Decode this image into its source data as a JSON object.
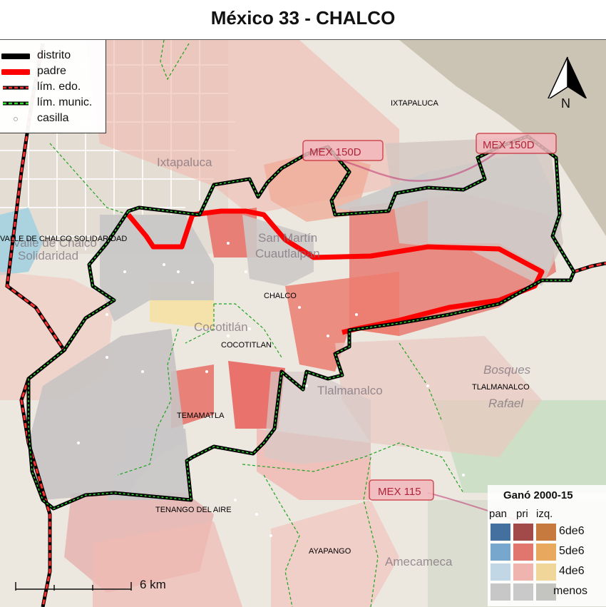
{
  "title": "México 33 - CHALCO",
  "legend": {
    "items": [
      {
        "label": "distrito"
      },
      {
        "label": "padre"
      },
      {
        "label": "lím. edo."
      },
      {
        "label": "lím. munic."
      },
      {
        "label": "casilla"
      }
    ]
  },
  "north_label": "N",
  "scale_label": "6 km",
  "municipality_labels": {
    "ixtapaluca": "IXTAPALUCA",
    "valle_chalco": "VALLE DE CHALCO SOLIDARIDAD",
    "chalco": "CHALCO",
    "cocotitlan": "COCOTITLAN",
    "tlalmanalco": "TLALMANALCO",
    "temamatla": "TEMAMATLA",
    "tenango": "TENANGO DEL AIRE",
    "ayapango": "AYAPANGO"
  },
  "basemap_labels": {
    "ixtapaluca_town": "Ixtapaluca",
    "valle_town_1": "Valle de Chalco",
    "valle_town_2": "Solidaridad",
    "san_martin_1": "San Martín",
    "san_martin_2": "Cuautlalpan",
    "cocotitlan_town": "Cocotitlán",
    "tlalmanalco_town": "Tlalmanalco",
    "bosques_1": "Bosques",
    "bosques_2": "Rafael",
    "amecameca_town": "Amecameca",
    "road_150d_a": "MEX 150D",
    "road_150d_b": "MEX 150D",
    "road_115": "MEX 115"
  },
  "winners_legend": {
    "title": "Ganó 2000-15",
    "columns": [
      "pan",
      "pri",
      "izq."
    ],
    "rows": [
      "6de6",
      "5de6",
      "4de6",
      "menos"
    ],
    "colors": {
      "pan": [
        "#43709f",
        "#77a7cc",
        "#c2d7e6",
        "#c7c7c7"
      ],
      "pri": [
        "#a24a4a",
        "#e0766e",
        "#efb4ad",
        "#c9c9c9"
      ],
      "izq": [
        "#c77a3e",
        "#e8a85d",
        "#f1d69a",
        "#c4c4c0"
      ]
    }
  },
  "colors": {
    "district": "#000000",
    "parent": "#ff0000",
    "state_limit": "#cc0000",
    "municipal_limit": "#22cc22"
  }
}
